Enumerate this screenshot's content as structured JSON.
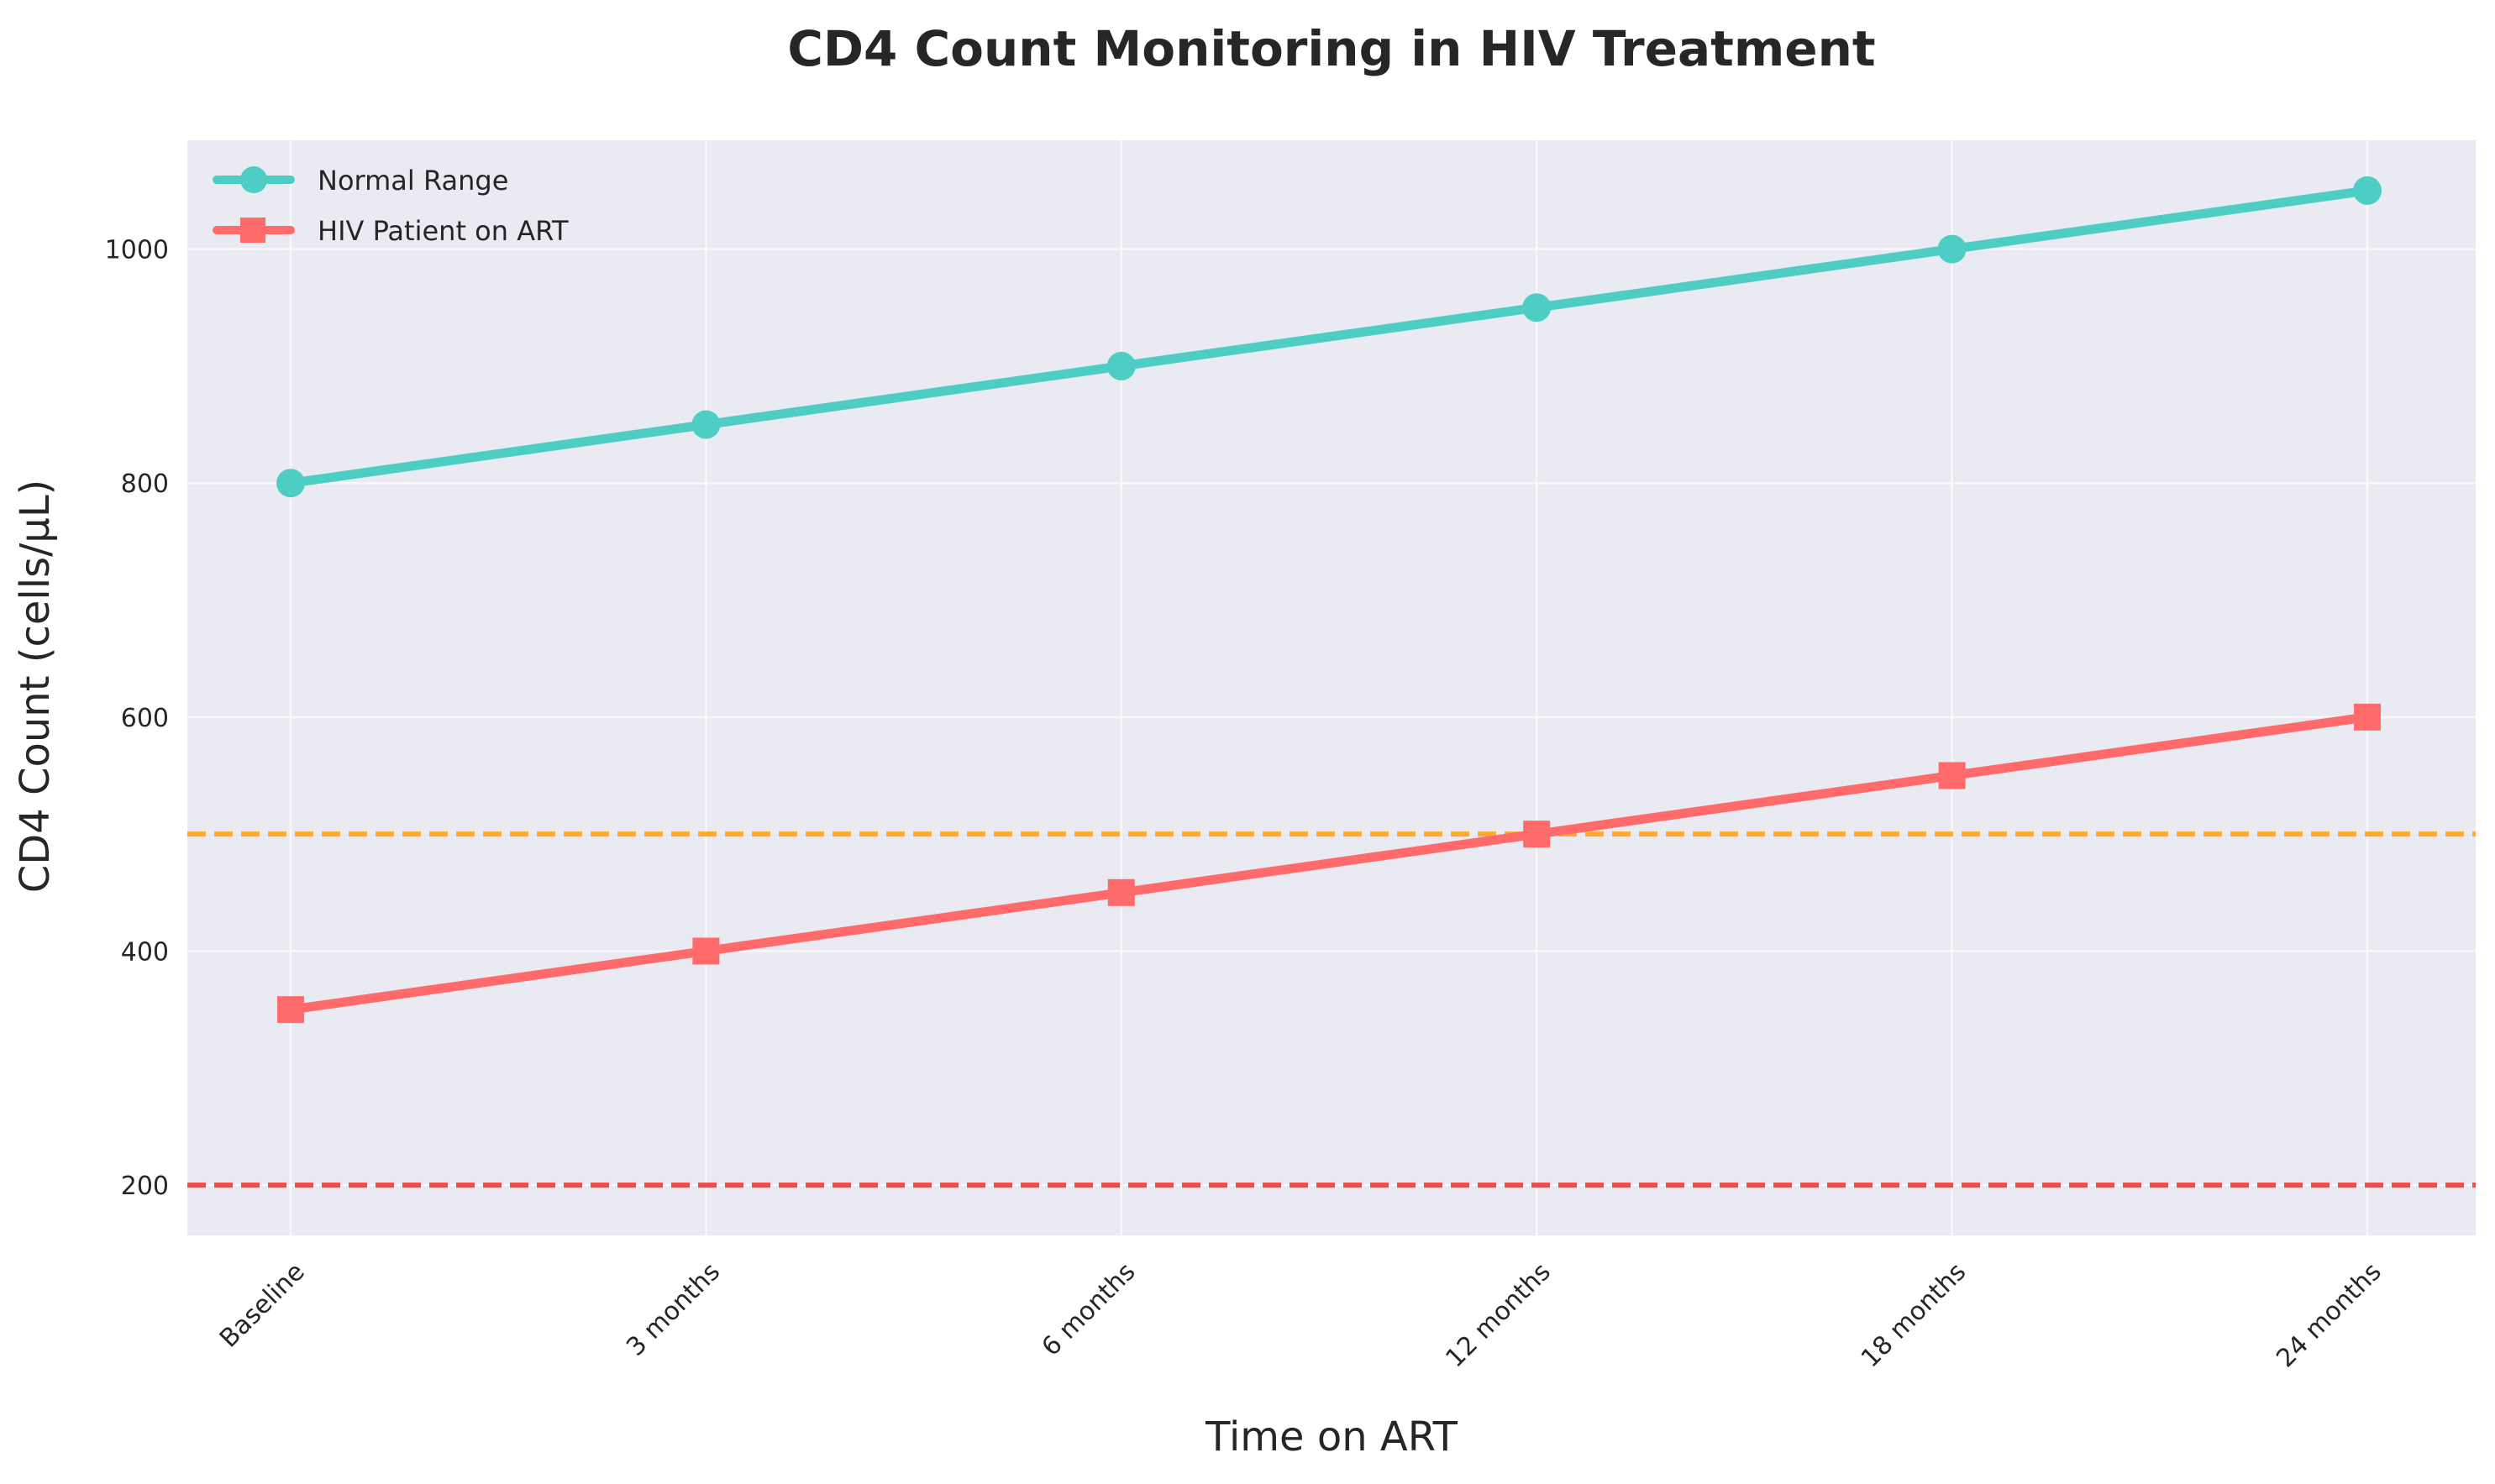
{
  "chart_data": {
    "type": "line",
    "title": "CD4 Count Monitoring in HIV Treatment",
    "xlabel": "Time on ART",
    "ylabel": "CD4 Count (cells/μL)",
    "categories": [
      "Baseline",
      "3 months",
      "6 months",
      "12 months",
      "18 months",
      "24 months"
    ],
    "series": [
      {
        "name": "Normal Range",
        "values": [
          800,
          850,
          900,
          950,
          1000,
          1050
        ],
        "color": "#4ECDC4",
        "marker": "circle"
      },
      {
        "name": "HIV Patient on ART",
        "values": [
          350,
          400,
          450,
          500,
          550,
          600
        ],
        "color": "#FF6B6B",
        "marker": "square"
      }
    ],
    "reference_lines": [
      {
        "y": 500,
        "color": "#FFA931",
        "style": "dashed"
      },
      {
        "y": 200,
        "color": "#F24A4A",
        "style": "dashed"
      }
    ],
    "ylim": [
      157,
      1093
    ],
    "yticks": [
      200,
      400,
      600,
      800,
      1000
    ],
    "grid": true,
    "legend_position": "top-left",
    "background": "#EAEAF2"
  }
}
